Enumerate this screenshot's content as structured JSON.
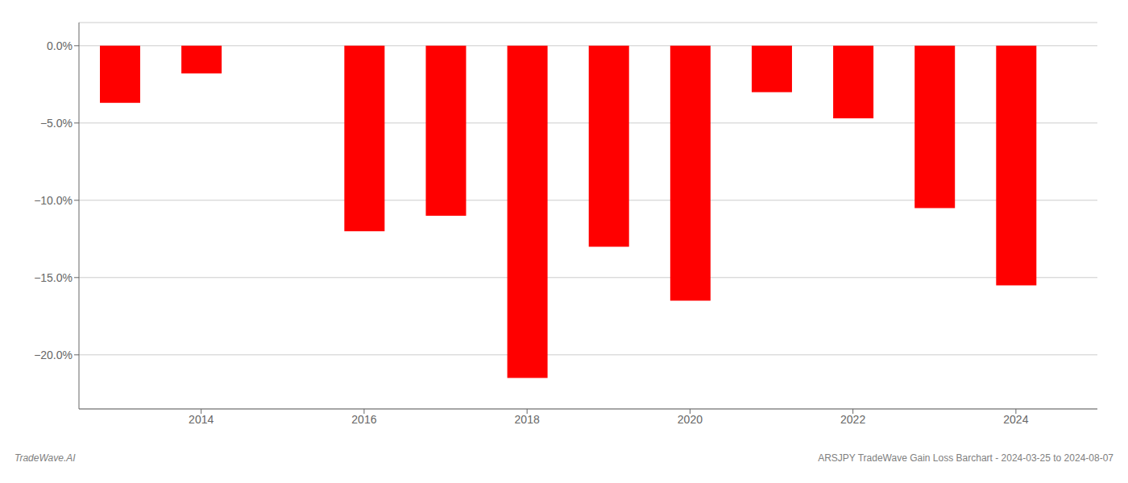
{
  "chart_data": {
    "type": "bar",
    "x": [
      2013,
      2014,
      2016,
      2017,
      2018,
      2019,
      2020,
      2021,
      2022,
      2023,
      2024
    ],
    "values": [
      -3.7,
      -1.8,
      -12.0,
      -11.0,
      -21.5,
      -13.0,
      -16.5,
      -3.0,
      -4.7,
      -10.5,
      -15.5
    ],
    "color": "#ff0000",
    "xlim": [
      2012.5,
      2025.0
    ],
    "xticks": [
      2014,
      2016,
      2018,
      2020,
      2022,
      2024
    ],
    "ylim": [
      -23.5,
      1.5
    ],
    "yticks": [
      {
        "value": 0.0,
        "label": "0.0%"
      },
      {
        "value": -5.0,
        "label": "−5.0%"
      },
      {
        "value": -10.0,
        "label": "−10.0%"
      },
      {
        "value": -15.0,
        "label": "−15.0%"
      },
      {
        "value": -20.0,
        "label": "−20.0%"
      }
    ],
    "grid": true,
    "annotations": [
      "TradeWave.AI",
      "ARSJPY TradeWave Gain Loss Barchart - 2024-03-25 to 2024-08-07"
    ]
  }
}
